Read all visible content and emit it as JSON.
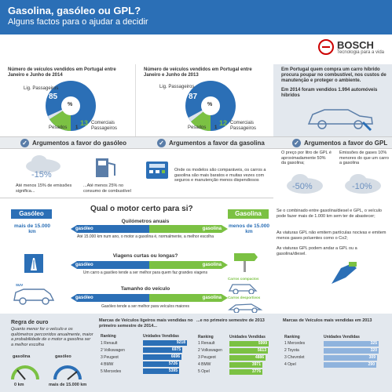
{
  "header": {
    "title": "Gasolina, gasóleo ou GPL?",
    "subtitle": "Alguns factos para o ajudar a decidir"
  },
  "brand": {
    "name": "BOSCH",
    "tagline": "Tecnologia para a vida"
  },
  "panel1": {
    "title": "Número de veículos vendidos em Portugal entre Janeiro e Junho de 2014",
    "labels": {
      "passenger": "Lig. Passageiros",
      "heavy": "Pesados",
      "commercial": "Comerciais Passageiros",
      "center": "%"
    },
    "values": {
      "passenger": "85",
      "heavy": "1",
      "commercial": "13"
    }
  },
  "panel2": {
    "title": "Número de veículos vendidos em Portugal entre Janeiro e Junho de 2013",
    "labels": {
      "passenger": "Lig. Passageiros",
      "heavy": "Pesados",
      "commercial": "Comerciais Passageiros",
      "center": "%"
    },
    "values": {
      "passenger": "87",
      "heavy": "1",
      "commercial": "12"
    }
  },
  "panel3": {
    "text1": "Em Portugal quem compra um carro híbrido procura poupar no combustível, nos custos de manutenção e proteger o ambiente.",
    "text2": "Em 2014 foram vendidos 1.994 automóveis híbridos"
  },
  "sections": {
    "diesel": "Argumentos a favor do gasóleo",
    "petrol": "Argumentos a favor da gasolina",
    "gpl": "Argumentos a favor do GPL"
  },
  "args": {
    "diesel_badge": "-15%",
    "diesel_note1": "Até menos 15% de emissões significa...",
    "diesel_note2": "...Até menos 25% no consumo de combustível",
    "petrol_note": "Onde os modelos são comparáveis, os carros a gasolina são mais baratos e muitas vezes com seguros e manutenção menos dispendiosos",
    "gpl_note1": "O preço por litro de GPL é aproximadamente 50% da gasolina;",
    "gpl_note2": "Emissões de gases 10% menores do que um carro a gasolina",
    "gpl_badge1": "-50%",
    "gpl_badge2": "-10%"
  },
  "middle": {
    "question": "Qual o motor certo para si?",
    "left_label": "Gasóleo",
    "right_label": "Gasolina",
    "left_sub": "mais de 15.000 km",
    "right_sub": "menos de 15.000 km",
    "s1_head": "Quilómetros anuais",
    "s1_body": "Até 15.000 km num ano, o motor a gasolina é, normalmente, a melhor escolha",
    "s2_head": "Viagens curtas ou longas?",
    "s2_body": "Um carro a gasóleo tende a ser melhor para quem faz grandes viagens",
    "s3_head": "Tamanho do veículo",
    "s3_body": "Gasóleo tende a ser melhor para veículos maiores",
    "arrow_left": "gasóleo",
    "arrow_right": "gasolina",
    "compact": "Carros compactos",
    "sport": "Carros desportivos",
    "suv": "SUV"
  },
  "rightcol": {
    "t1": "Se o combinado entre gasolina/diesel e GPL, o veículo pode fazer mais de 1.000 km sem ter de abastecer;",
    "t2": "As viaturas GPL não emitem partículas nocivas e emitem menos gases poluentes como o Co2;",
    "t3": "As viaturas GPL podem andar a GPL ou a gasolina/diesel."
  },
  "bottom": {
    "rule_head": "Regra de ouro",
    "rule_body": "Quanto menor for o veículo e os quilómetros percorridos anualmente, maior a probabilidade de o motor a gasolina ser a melhor escolha",
    "g1": "gasolina",
    "g2": "gasóleo",
    "km0": "0 km",
    "km1": "mais de 15.000 km"
  },
  "chart_data": [
    {
      "type": "bar",
      "title": "Marcas de Veículos ligeiros mais vendidas no primeiro semestre de 2014...",
      "columns": [
        "Ranking",
        "Unidades Vendidas"
      ],
      "categories": [
        "1 Renault",
        "2 Volkswagen",
        "3 Peugeot",
        "4 BMW",
        "5 Mercedes"
      ],
      "values": [
        9218,
        6975,
        6696,
        5726,
        5395
      ]
    },
    {
      "type": "bar",
      "title": "...e no primeiro semestre de 2013",
      "columns": [
        "Ranking",
        "Unidades Vendidas"
      ],
      "categories": [
        "1 Renault",
        "2 Volkswagen",
        "3 Peugeot",
        "4 BMW",
        "5 Opel"
      ],
      "values": [
        5999,
        5613,
        4886,
        3971,
        3776
      ]
    },
    {
      "type": "bar",
      "title": "Marcas de Veículos mais vendidas em 2013",
      "columns": [
        "Ranking",
        "Unidades Vendidas"
      ],
      "categories": [
        "1 Mercedes",
        "2 Toyota",
        "3 Chevrolet",
        "4 Opel"
      ],
      "values": [
        325,
        320,
        309,
        290
      ]
    }
  ]
}
